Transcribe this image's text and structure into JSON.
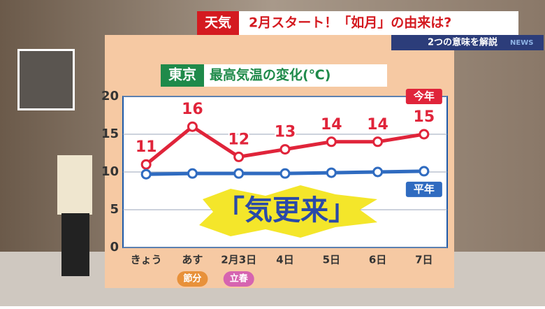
{
  "banner": {
    "tag": "天気",
    "headline": "2月スタート！「如月」の由来は?",
    "subline": "2つの意味を解説",
    "logo": "NEWS"
  },
  "chart_data": {
    "type": "line",
    "title_box": "東京",
    "title": "最高気温の変化(℃)",
    "categories": [
      "きょう",
      "あす",
      "2月3日",
      "4日",
      "5日",
      "6日",
      "7日"
    ],
    "series": [
      {
        "name": "今年",
        "color": "#e0243a",
        "values": [
          11,
          16,
          12,
          13,
          14,
          14,
          15
        ]
      },
      {
        "name": "平年",
        "color": "#2f6bc0",
        "values": [
          9.7,
          9.8,
          9.8,
          9.8,
          9.9,
          10,
          10.1
        ]
      }
    ],
    "ylim": [
      0,
      20
    ],
    "yticks": [
      0,
      5,
      10,
      15,
      20
    ],
    "grid": true,
    "annotations": [
      "節分",
      "立春",
      "「気更来」"
    ]
  }
}
